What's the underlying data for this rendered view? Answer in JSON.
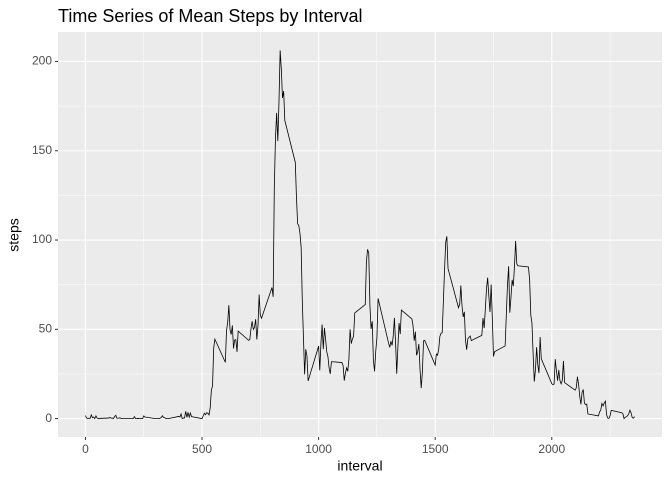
{
  "chart_data": {
    "type": "line",
    "title": "Time Series of Mean Steps by Interval",
    "x_label": "interval",
    "y_label": "steps",
    "xlim": [
      -117.75,
      2472.75
    ],
    "ylim": [
      -10.3,
      216.5
    ],
    "xticks": [
      0,
      500,
      1000,
      1500,
      2000
    ],
    "yticks": [
      0,
      50,
      100,
      150,
      200
    ],
    "grid": true,
    "series": [
      {
        "name": "steps",
        "color": "#000000",
        "x": [
          0,
          5,
          10,
          15,
          20,
          25,
          30,
          35,
          40,
          45,
          50,
          55,
          100,
          105,
          110,
          115,
          120,
          125,
          130,
          135,
          140,
          145,
          150,
          155,
          200,
          205,
          210,
          215,
          220,
          225,
          230,
          235,
          240,
          245,
          250,
          255,
          300,
          305,
          310,
          315,
          320,
          325,
          330,
          335,
          340,
          345,
          350,
          355,
          400,
          405,
          410,
          415,
          420,
          425,
          430,
          435,
          440,
          445,
          450,
          455,
          500,
          505,
          510,
          515,
          520,
          525,
          530,
          535,
          540,
          545,
          550,
          555,
          600,
          605,
          610,
          615,
          620,
          625,
          630,
          635,
          640,
          645,
          650,
          655,
          700,
          705,
          710,
          715,
          720,
          725,
          730,
          735,
          740,
          745,
          750,
          755,
          800,
          805,
          810,
          815,
          820,
          825,
          830,
          835,
          840,
          845,
          850,
          855,
          900,
          905,
          910,
          915,
          920,
          925,
          930,
          935,
          940,
          945,
          950,
          955,
          1000,
          1005,
          1010,
          1015,
          1020,
          1025,
          1030,
          1035,
          1040,
          1045,
          1050,
          1055,
          1100,
          1105,
          1110,
          1115,
          1120,
          1125,
          1130,
          1135,
          1140,
          1145,
          1150,
          1155,
          1200,
          1205,
          1210,
          1215,
          1220,
          1225,
          1230,
          1235,
          1240,
          1245,
          1250,
          1255,
          1300,
          1305,
          1310,
          1315,
          1320,
          1325,
          1330,
          1335,
          1340,
          1345,
          1350,
          1355,
          1400,
          1405,
          1410,
          1415,
          1420,
          1425,
          1430,
          1435,
          1440,
          1445,
          1450,
          1455,
          1500,
          1505,
          1510,
          1515,
          1520,
          1525,
          1530,
          1535,
          1540,
          1545,
          1550,
          1555,
          1600,
          1605,
          1610,
          1615,
          1620,
          1625,
          1630,
          1635,
          1640,
          1645,
          1650,
          1655,
          1700,
          1705,
          1710,
          1715,
          1720,
          1725,
          1730,
          1735,
          1740,
          1745,
          1750,
          1755,
          1800,
          1805,
          1810,
          1815,
          1820,
          1825,
          1830,
          1835,
          1840,
          1845,
          1850,
          1855,
          1900,
          1905,
          1910,
          1915,
          1920,
          1925,
          1930,
          1935,
          1940,
          1945,
          1950,
          1955,
          2000,
          2005,
          2010,
          2015,
          2020,
          2025,
          2030,
          2035,
          2040,
          2045,
          2050,
          2055,
          2100,
          2105,
          2110,
          2115,
          2120,
          2125,
          2130,
          2135,
          2140,
          2145,
          2150,
          2155,
          2200,
          2205,
          2210,
          2215,
          2220,
          2225,
          2230,
          2235,
          2240,
          2245,
          2250,
          2255,
          2300,
          2305,
          2310,
          2315,
          2320,
          2325,
          2330,
          2335,
          2340,
          2345,
          2350,
          2355
        ],
        "values": [
          1.7,
          0.3,
          0.1,
          0.2,
          0.1,
          2.1,
          0.5,
          0.9,
          0,
          1.5,
          0.3,
          0.1,
          0.3,
          0.7,
          0.2,
          0.3,
          0,
          1.1,
          1.8,
          0.2,
          0.2,
          0.4,
          0.3,
          0,
          0,
          0,
          1.1,
          0,
          0,
          0.1,
          0,
          0.2,
          0,
          0,
          1.5,
          0.9,
          0,
          0,
          0,
          0,
          0.2,
          0.6,
          1.6,
          0.6,
          0.5,
          0.1,
          0,
          0,
          1.2,
          0.9,
          2.6,
          0,
          0.3,
          0.4,
          4.1,
          0.7,
          3.5,
          0.8,
          3.1,
          1.1,
          0,
          1.6,
          3,
          2.2,
          3.3,
          3,
          2.1,
          6.1,
          16,
          18.3,
          39.5,
          44.5,
          31.5,
          49.3,
          53.8,
          63.5,
          50,
          47.1,
          52.2,
          39.3,
          44,
          44.2,
          37.4,
          49,
          43.8,
          44.4,
          50.5,
          54.5,
          49.9,
          51,
          55.7,
          44.3,
          52.3,
          69.5,
          57.8,
          56.2,
          73.4,
          68.2,
          129.4,
          157.5,
          171.2,
          155.4,
          177.3,
          206.2,
          195.9,
          179.6,
          183.4,
          167,
          143.5,
          124,
          109.1,
          108.1,
          103.7,
          96,
          66.2,
          45.2,
          24.8,
          38.8,
          35,
          21.1,
          40.6,
          27,
          42.4,
          52.7,
          38.9,
          50.8,
          44.3,
          37.4,
          34.7,
          28.3,
          25.1,
          31.9,
          31.4,
          29.7,
          21.3,
          25.5,
          28.4,
          26.5,
          33.4,
          50,
          42,
          44.6,
          46,
          59.2,
          63.9,
          87.7,
          94.8,
          92.8,
          63.4,
          50.2,
          54.5,
          32.4,
          26.5,
          37.7,
          45.1,
          67.3,
          42.3,
          39.9,
          43.3,
          41,
          46.2,
          56.4,
          42.8,
          25.1,
          40,
          53.5,
          47.3,
          60.8,
          55.8,
          52,
          43.6,
          48.7,
          35.5,
          37.5,
          41.8,
          27.5,
          17.1,
          26.1,
          43.6,
          43.8,
          30,
          36.1,
          35.5,
          38.8,
          46,
          47.8,
          48.1,
          65.3,
          82.9,
          98.7,
          102.1,
          84,
          62.1,
          64.1,
          74.5,
          63.2,
          56.9,
          59.8,
          43.9,
          38.6,
          44.7,
          45.5,
          46.2,
          43.7,
          46.6,
          56.3,
          50.7,
          61.2,
          72.7,
          78.9,
          68.9,
          59.7,
          75.1,
          56.5,
          34.8,
          37.5,
          40.7,
          58,
          74.7,
          85.3,
          59.3,
          67.8,
          77.7,
          74.2,
          85.3,
          99.5,
          86.6,
          85.6,
          84.9,
          77.8,
          58,
          53.4,
          36.3,
          20.7,
          27.4,
          40,
          30.2,
          25.5,
          45.7,
          33.5,
          19.6,
          19,
          19.3,
          33.3,
          26.8,
          21.2,
          27.3,
          21.3,
          19.5,
          21.3,
          32.3,
          20.2,
          15.9,
          17.2,
          23.5,
          19.2,
          12.5,
          8,
          14.7,
          16.3,
          8.7,
          7.8,
          8.1,
          2.6,
          1.5,
          3.7,
          4.8,
          8.5,
          7.1,
          8.7,
          9.8,
          2.2,
          0.3,
          0.1,
          1.6,
          4.6,
          3.3,
          2.8,
          0,
          0.8,
          1,
          1.6,
          2.6,
          4.7,
          3.3,
          0.6,
          0.2,
          1.1
        ]
      }
    ]
  }
}
